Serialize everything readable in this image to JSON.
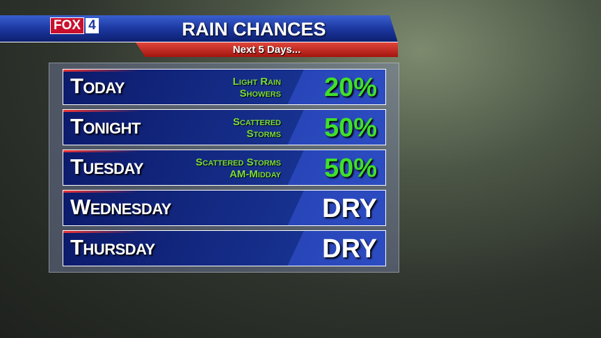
{
  "header": {
    "logo": {
      "brand": "FOX",
      "number": "4"
    },
    "title": "RAIN CHANCES",
    "subtitle": "Next 5 Days..."
  },
  "rows": [
    {
      "day": "Today",
      "description": [
        "Light Rain",
        "Showers"
      ],
      "chance": "20%"
    },
    {
      "day": "Tonight",
      "description": [
        "Scattered",
        "Storms"
      ],
      "chance": "50%"
    },
    {
      "day": "Tuesday",
      "description": [
        "Scattered Storms",
        "AM-Midday"
      ],
      "chance": "50%"
    },
    {
      "day": "Wednesday",
      "description": [],
      "chance": "DRY"
    },
    {
      "day": "Thursday",
      "description": [],
      "chance": "DRY"
    }
  ]
}
